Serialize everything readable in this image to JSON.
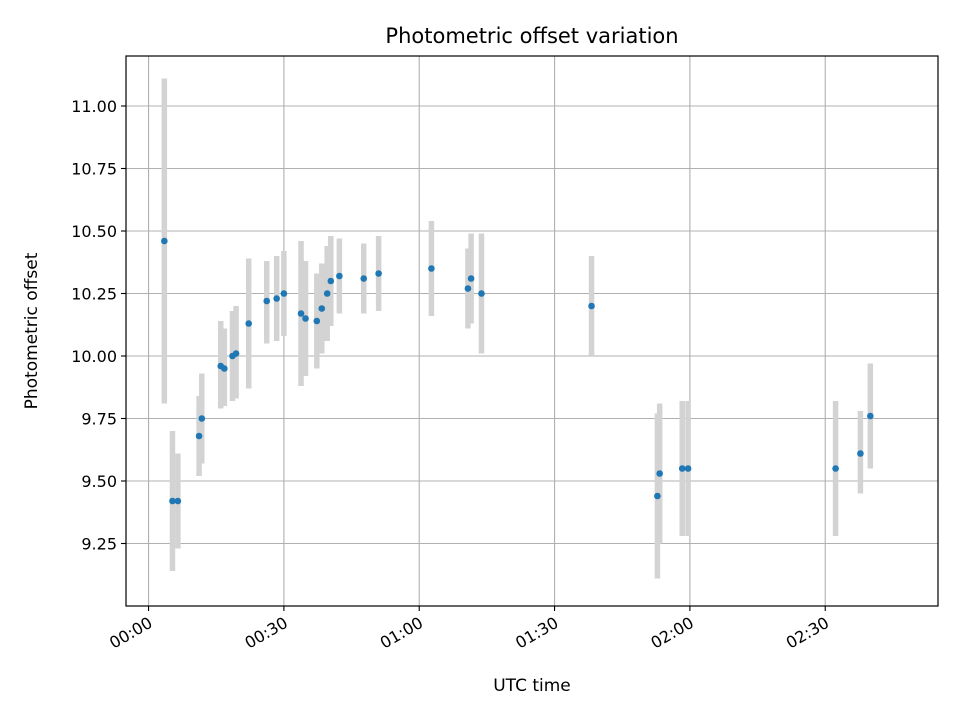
{
  "chart_data": {
    "type": "scatter",
    "title": "Photometric offset variation",
    "xlabel": "UTC time",
    "ylabel": "Photometric offset",
    "x_unit": "HH:MM",
    "xlim": [
      "-00:05",
      "02:55"
    ],
    "ylim": [
      9.0,
      11.2
    ],
    "x_ticks": [
      "00:00",
      "00:30",
      "01:00",
      "01:30",
      "02:00",
      "02:30"
    ],
    "y_ticks": [
      "9.25",
      "9.50",
      "9.75",
      "10.00",
      "10.25",
      "10.50",
      "10.75",
      "11.00"
    ],
    "grid": true,
    "colors": {
      "points": "#1f77b4",
      "errorbars": "#d3d3d3",
      "grid": "#b0b0b0"
    },
    "points": [
      {
        "x": "00:03.5",
        "y": 10.46,
        "err": [
          9.81,
          11.11
        ]
      },
      {
        "x": "00:05.3",
        "y": 9.42,
        "err": [
          9.14,
          9.7
        ]
      },
      {
        "x": "00:06.5",
        "y": 9.42,
        "err": [
          9.23,
          9.61
        ]
      },
      {
        "x": "00:11.2",
        "y": 9.68,
        "err": [
          9.52,
          9.84
        ]
      },
      {
        "x": "00:11.8",
        "y": 9.75,
        "err": [
          9.57,
          9.93
        ]
      },
      {
        "x": "00:16.0",
        "y": 9.96,
        "err": [
          9.79,
          10.14
        ]
      },
      {
        "x": "00:16.8",
        "y": 9.95,
        "err": [
          9.8,
          10.11
        ]
      },
      {
        "x": "00:18.6",
        "y": 10.0,
        "err": [
          9.82,
          10.18
        ]
      },
      {
        "x": "00:19.4",
        "y": 10.01,
        "err": [
          9.83,
          10.2
        ]
      },
      {
        "x": "00:22.2",
        "y": 10.13,
        "err": [
          9.87,
          10.39
        ]
      },
      {
        "x": "00:26.2",
        "y": 10.22,
        "err": [
          10.05,
          10.38
        ]
      },
      {
        "x": "00:28.4",
        "y": 10.23,
        "err": [
          10.06,
          10.4
        ]
      },
      {
        "x": "00:30.0",
        "y": 10.25,
        "err": [
          10.08,
          10.42
        ]
      },
      {
        "x": "00:33.8",
        "y": 10.17,
        "err": [
          9.88,
          10.46
        ]
      },
      {
        "x": "00:34.8",
        "y": 10.15,
        "err": [
          9.92,
          10.38
        ]
      },
      {
        "x": "00:37.3",
        "y": 10.14,
        "err": [
          9.95,
          10.33
        ]
      },
      {
        "x": "00:38.4",
        "y": 10.19,
        "err": [
          10.01,
          10.37
        ]
      },
      {
        "x": "00:39.6",
        "y": 10.25,
        "err": [
          10.06,
          10.44
        ]
      },
      {
        "x": "00:40.4",
        "y": 10.3,
        "err": [
          10.12,
          10.48
        ]
      },
      {
        "x": "00:42.3",
        "y": 10.32,
        "err": [
          10.17,
          10.47
        ]
      },
      {
        "x": "00:47.7",
        "y": 10.31,
        "err": [
          10.17,
          10.45
        ]
      },
      {
        "x": "00:51.0",
        "y": 10.33,
        "err": [
          10.18,
          10.48
        ]
      },
      {
        "x": "01:02.7",
        "y": 10.35,
        "err": [
          10.16,
          10.54
        ]
      },
      {
        "x": "01:10.8",
        "y": 10.27,
        "err": [
          10.11,
          10.43
        ]
      },
      {
        "x": "01:11.5",
        "y": 10.31,
        "err": [
          10.13,
          10.49
        ]
      },
      {
        "x": "01:13.8",
        "y": 10.25,
        "err": [
          10.01,
          10.49
        ]
      },
      {
        "x": "01:38.2",
        "y": 10.2,
        "err": [
          10.0,
          10.4
        ]
      },
      {
        "x": "01:52.8",
        "y": 9.44,
        "err": [
          9.11,
          9.77
        ]
      },
      {
        "x": "01:53.3",
        "y": 9.53,
        "err": [
          9.25,
          9.81
        ]
      },
      {
        "x": "01:58.3",
        "y": 9.55,
        "err": [
          9.28,
          9.82
        ]
      },
      {
        "x": "01:59.6",
        "y": 9.55,
        "err": [
          9.28,
          9.82
        ]
      },
      {
        "x": "02:32.3",
        "y": 9.55,
        "err": [
          9.28,
          9.82
        ]
      },
      {
        "x": "02:37.8",
        "y": 9.61,
        "err": [
          9.45,
          9.78
        ]
      },
      {
        "x": "02:40.0",
        "y": 9.76,
        "err": [
          9.55,
          9.97
        ]
      }
    ]
  }
}
